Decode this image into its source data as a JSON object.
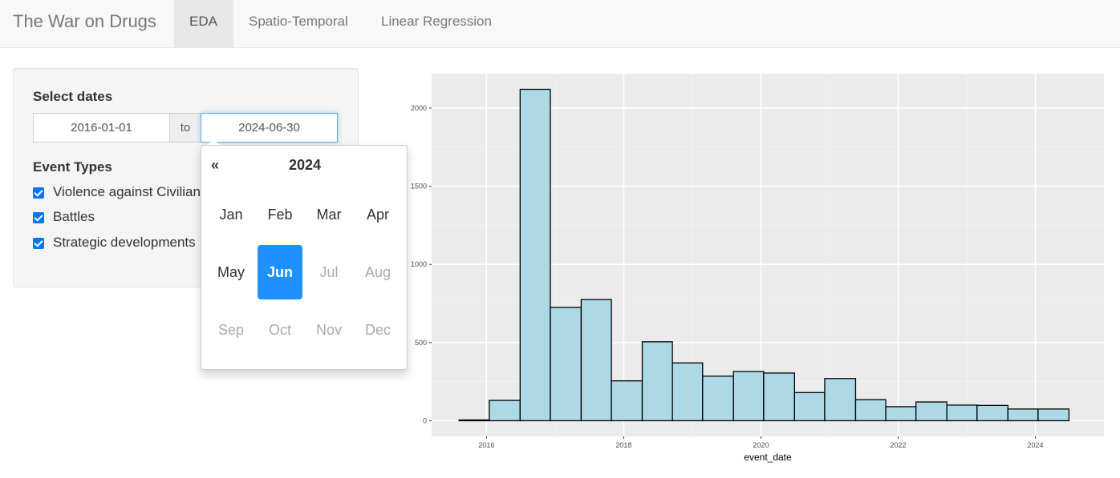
{
  "navbar": {
    "brand": "The War on Drugs",
    "tabs": [
      {
        "label": "EDA",
        "active": true
      },
      {
        "label": "Spatio-Temporal",
        "active": false
      },
      {
        "label": "Linear Regression",
        "active": false
      }
    ]
  },
  "sidebar": {
    "dates_label": "Select dates",
    "start_date": "2016-01-01",
    "separator": "to",
    "end_date": "2024-06-30",
    "event_types_label": "Event Types",
    "event_types": [
      {
        "label": "Violence against Civilians",
        "checked": true
      },
      {
        "label": "Battles",
        "checked": true
      },
      {
        "label": "Strategic developments",
        "checked": true
      }
    ]
  },
  "datepicker": {
    "prev": "«",
    "year": "2024",
    "months": [
      {
        "label": "Jan",
        "state": "normal"
      },
      {
        "label": "Feb",
        "state": "normal"
      },
      {
        "label": "Mar",
        "state": "normal"
      },
      {
        "label": "Apr",
        "state": "normal"
      },
      {
        "label": "May",
        "state": "normal"
      },
      {
        "label": "Jun",
        "state": "active"
      },
      {
        "label": "Jul",
        "state": "disabled"
      },
      {
        "label": "Aug",
        "state": "disabled"
      },
      {
        "label": "Sep",
        "state": "disabled"
      },
      {
        "label": "Oct",
        "state": "disabled"
      },
      {
        "label": "Nov",
        "state": "disabled"
      },
      {
        "label": "Dec",
        "state": "disabled"
      }
    ]
  },
  "colors": {
    "bar_fill": "#add8e6",
    "bar_stroke": "#000000",
    "panel_bg": "#ebebeb",
    "active_month": "#1e90ff"
  },
  "chart_data": {
    "type": "bar",
    "xlabel": "event_date",
    "ylabel": "",
    "xlim": [
      2015.2,
      2025.0
    ],
    "ylim": [
      -100,
      2220
    ],
    "x_ticks": [
      2016,
      2018,
      2020,
      2022,
      2024
    ],
    "y_ticks": [
      0,
      500,
      1000,
      1500,
      2000
    ],
    "bins": [
      {
        "x0": 2015.6,
        "x1": 2016.04,
        "value": 5
      },
      {
        "x0": 2016.04,
        "x1": 2016.49,
        "value": 130
      },
      {
        "x0": 2016.49,
        "x1": 2016.93,
        "value": 2120
      },
      {
        "x0": 2016.93,
        "x1": 2017.38,
        "value": 725
      },
      {
        "x0": 2017.38,
        "x1": 2017.82,
        "value": 775
      },
      {
        "x0": 2017.82,
        "x1": 2018.27,
        "value": 255
      },
      {
        "x0": 2018.27,
        "x1": 2018.71,
        "value": 505
      },
      {
        "x0": 2018.71,
        "x1": 2019.15,
        "value": 370
      },
      {
        "x0": 2019.15,
        "x1": 2019.6,
        "value": 285
      },
      {
        "x0": 2019.6,
        "x1": 2020.04,
        "value": 315
      },
      {
        "x0": 2020.04,
        "x1": 2020.49,
        "value": 305
      },
      {
        "x0": 2020.49,
        "x1": 2020.93,
        "value": 180
      },
      {
        "x0": 2020.93,
        "x1": 2021.38,
        "value": 270
      },
      {
        "x0": 2021.38,
        "x1": 2021.82,
        "value": 135
      },
      {
        "x0": 2021.82,
        "x1": 2022.26,
        "value": 90
      },
      {
        "x0": 2022.26,
        "x1": 2022.71,
        "value": 120
      },
      {
        "x0": 2022.71,
        "x1": 2023.15,
        "value": 100
      },
      {
        "x0": 2023.15,
        "x1": 2023.6,
        "value": 98
      },
      {
        "x0": 2023.6,
        "x1": 2024.04,
        "value": 75
      },
      {
        "x0": 2024.04,
        "x1": 2024.49,
        "value": 75
      }
    ],
    "grid": true
  }
}
